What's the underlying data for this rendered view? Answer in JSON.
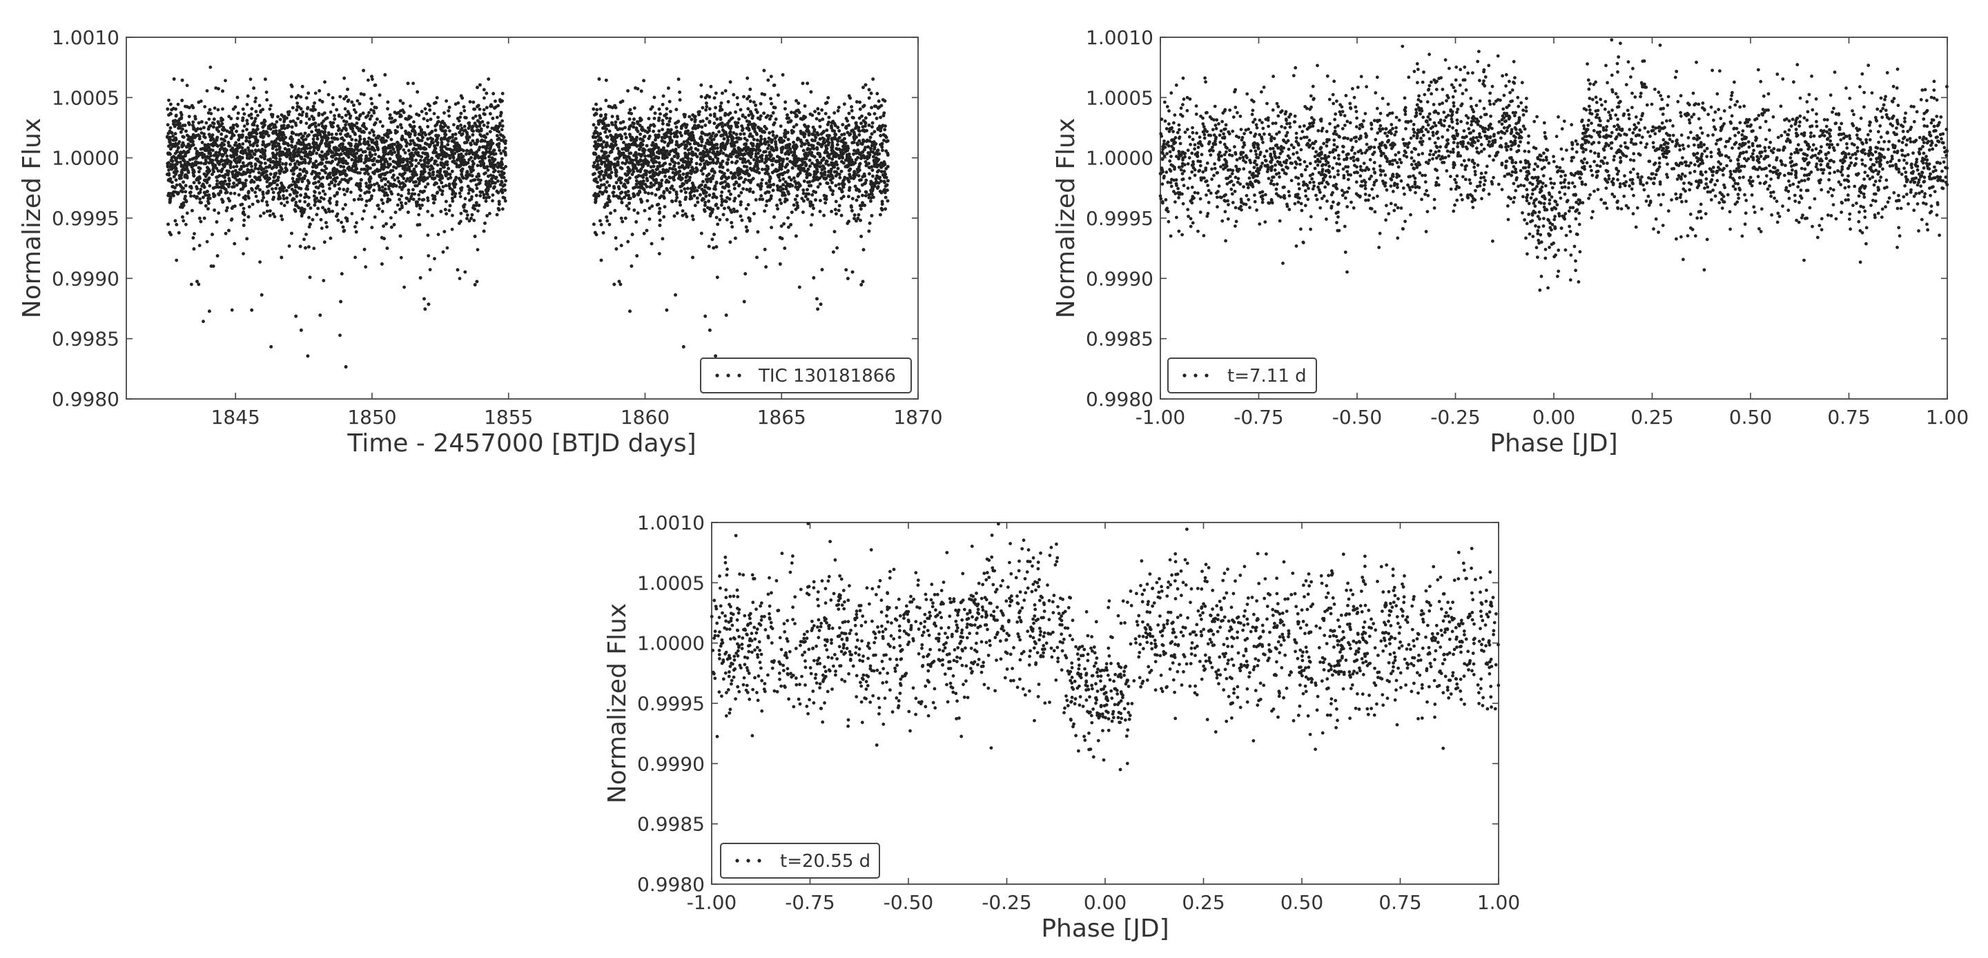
{
  "chart_data": [
    {
      "type": "scatter",
      "xlabel": "Time - 2457000 [BTJD days]",
      "ylabel": "Normalized Flux",
      "xlim": [
        1841,
        1870
      ],
      "ylim": [
        0.998,
        1.001
      ],
      "xticks": [
        1845,
        1850,
        1855,
        1860,
        1865,
        1870
      ],
      "xtick_labels": [
        "1845",
        "1850",
        "1855",
        "1860",
        "1865",
        "1870"
      ],
      "yticks": [
        0.998,
        0.9985,
        0.999,
        0.9995,
        1.0,
        1.0005,
        1.001
      ],
      "ytick_labels": [
        "0.9980",
        "0.9985",
        "0.9990",
        "0.9995",
        "1.0000",
        "1.0005",
        "1.0010"
      ],
      "grid": false,
      "legend": {
        "label": "TIC 130181866",
        "placement": "lower-right"
      },
      "series": [
        {
          "name": "TIC 130181866",
          "color": "#222222",
          "segments": [
            [
              1842.5,
              1854.9
            ],
            [
              1858.1,
              1868.9
            ]
          ],
          "baseline": 1.0,
          "scatter_sigma": 0.00024
        }
      ]
    },
    {
      "type": "scatter",
      "xlabel": "Phase [JD]",
      "ylabel": "Normalized Flux",
      "xlim": [
        -1.0,
        1.0
      ],
      "ylim": [
        0.998,
        1.001
      ],
      "xticks": [
        -1.0,
        -0.75,
        -0.5,
        -0.25,
        0.0,
        0.25,
        0.5,
        0.75,
        1.0
      ],
      "xtick_labels": [
        "-1.00",
        "-0.75",
        "-0.50",
        "-0.25",
        "0.00",
        "0.25",
        "0.50",
        "0.75",
        "1.00"
      ],
      "yticks": [
        0.998,
        0.9985,
        0.999,
        0.9995,
        1.0,
        1.0005,
        1.001
      ],
      "ytick_labels": [
        "0.9980",
        "0.9985",
        "0.9990",
        "0.9995",
        "1.0000",
        "1.0005",
        "1.0010"
      ],
      "grid": false,
      "legend": {
        "label": "t=7.11 d",
        "placement": "lower-left"
      },
      "series": [
        {
          "name": "t=7.11 d",
          "color": "#222222",
          "baseline": 1.0,
          "scatter_sigma": 0.00028,
          "transit": {
            "center": 0.0,
            "half_width": 0.07,
            "depth": 0.0004
          }
        }
      ]
    },
    {
      "type": "scatter",
      "xlabel": "Phase [JD]",
      "ylabel": "Normalized Flux",
      "xlim": [
        -1.0,
        1.0
      ],
      "ylim": [
        0.998,
        1.001
      ],
      "xticks": [
        -1.0,
        -0.75,
        -0.5,
        -0.25,
        0.0,
        0.25,
        0.5,
        0.75,
        1.0
      ],
      "xtick_labels": [
        "-1.00",
        "-0.75",
        "-0.50",
        "-0.25",
        "0.00",
        "0.25",
        "0.50",
        "0.75",
        "1.00"
      ],
      "yticks": [
        0.998,
        0.9985,
        0.999,
        0.9995,
        1.0,
        1.0005,
        1.001
      ],
      "ytick_labels": [
        "0.9980",
        "0.9985",
        "0.9990",
        "0.9995",
        "1.0000",
        "1.0005",
        "1.0010"
      ],
      "grid": false,
      "legend": {
        "label": "t=20.55 d",
        "placement": "lower-left"
      },
      "series": [
        {
          "name": "t=20.55 d",
          "color": "#222222",
          "baseline": 1.0,
          "scatter_sigma": 0.0003,
          "transit": {
            "center": -0.02,
            "half_width": 0.09,
            "depth": 0.00045
          }
        }
      ]
    }
  ]
}
